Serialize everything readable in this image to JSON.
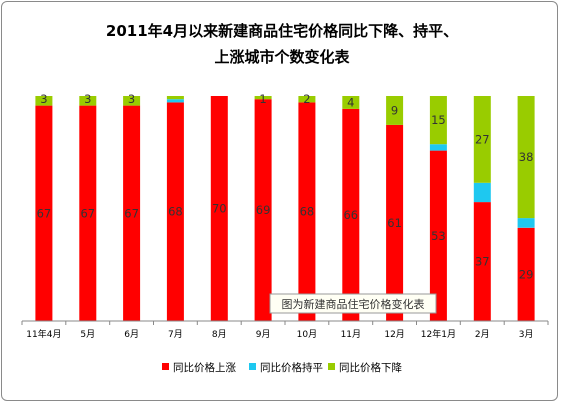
{
  "chart_data": {
    "type": "bar",
    "stacked": true,
    "title_line1": "2011年4月以来新建商品住宅价格同比下降、持平、",
    "title_line2": "上涨城市个数变化表",
    "categories": [
      "11年4月",
      "5月",
      "6月",
      "7月",
      "8月",
      "9月",
      "10月",
      "11月",
      "12月",
      "12年1月",
      "2月",
      "3月"
    ],
    "series": [
      {
        "name": "同比价格上涨",
        "color": "#ff0000",
        "values": [
          67,
          67,
          67,
          68,
          70,
          69,
          68,
          66,
          61,
          53,
          37,
          29
        ],
        "labels": [
          "67",
          "67",
          "67",
          "68",
          "70",
          "69",
          "68",
          "66",
          "61",
          "53",
          "37",
          "29"
        ]
      },
      {
        "name": "同比价格持平",
        "color": "#1ec8f0",
        "values": [
          0,
          0,
          0,
          1,
          0,
          0,
          0,
          0,
          0,
          2,
          6,
          3
        ],
        "labels": [
          "",
          "",
          "",
          "",
          "",
          "",
          "",
          "",
          "",
          "",
          "",
          ""
        ]
      },
      {
        "name": "同比价格下降",
        "color": "#99cc00",
        "values": [
          3,
          3,
          3,
          1,
          0,
          1,
          2,
          4,
          9,
          15,
          27,
          38
        ],
        "labels": [
          "3",
          "3",
          "3",
          "",
          "",
          "1",
          "2",
          "4",
          "9",
          "15",
          "27",
          "38"
        ]
      }
    ],
    "ylim": [
      0,
      70
    ],
    "tooltip": "图为新建商品住宅价格变化表",
    "legend_position": "bottom"
  }
}
